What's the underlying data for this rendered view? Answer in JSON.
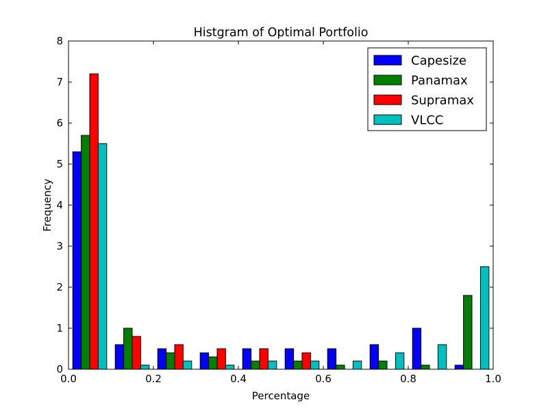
{
  "chart_data": {
    "type": "bar",
    "title": "Histgram of Optimal Portfolio",
    "xlabel": "Percentage",
    "ylabel": "Frequency",
    "xlim": [
      0.0,
      1.0
    ],
    "ylim": [
      0,
      8
    ],
    "xticks": [
      "0.0",
      "0.2",
      "0.4",
      "0.6",
      "0.8",
      "1.0"
    ],
    "xtick_values": [
      0.0,
      0.2,
      0.4,
      0.6,
      0.8,
      1.0
    ],
    "yticks": [
      "0",
      "1",
      "2",
      "3",
      "4",
      "5",
      "6",
      "7",
      "8"
    ],
    "ytick_values": [
      0,
      1,
      2,
      3,
      4,
      5,
      6,
      7,
      8
    ],
    "bin_edges": [
      0.0,
      0.1,
      0.2,
      0.3,
      0.4,
      0.5,
      0.6,
      0.7,
      0.8,
      0.9,
      1.0
    ],
    "grid": false,
    "legend_position": "top-right",
    "series": [
      {
        "name": "Capesize",
        "color": "#0000ff",
        "values": [
          5.3,
          0.6,
          0.5,
          0.4,
          0.5,
          0.5,
          0.5,
          0.6,
          1.0,
          0.1
        ]
      },
      {
        "name": "Panamax",
        "color": "#008000",
        "values": [
          5.7,
          1.0,
          0.4,
          0.3,
          0.2,
          0.2,
          0.1,
          0.2,
          0.1,
          1.8
        ]
      },
      {
        "name": "Supramax",
        "color": "#ff0000",
        "values": [
          7.2,
          0.8,
          0.6,
          0.5,
          0.5,
          0.4,
          0.0,
          0.0,
          0.0,
          0.0
        ]
      },
      {
        "name": "VLCC",
        "color": "#00bfbf",
        "values": [
          5.5,
          0.1,
          0.2,
          0.1,
          0.2,
          0.2,
          0.2,
          0.4,
          0.6,
          2.5
        ]
      }
    ]
  }
}
